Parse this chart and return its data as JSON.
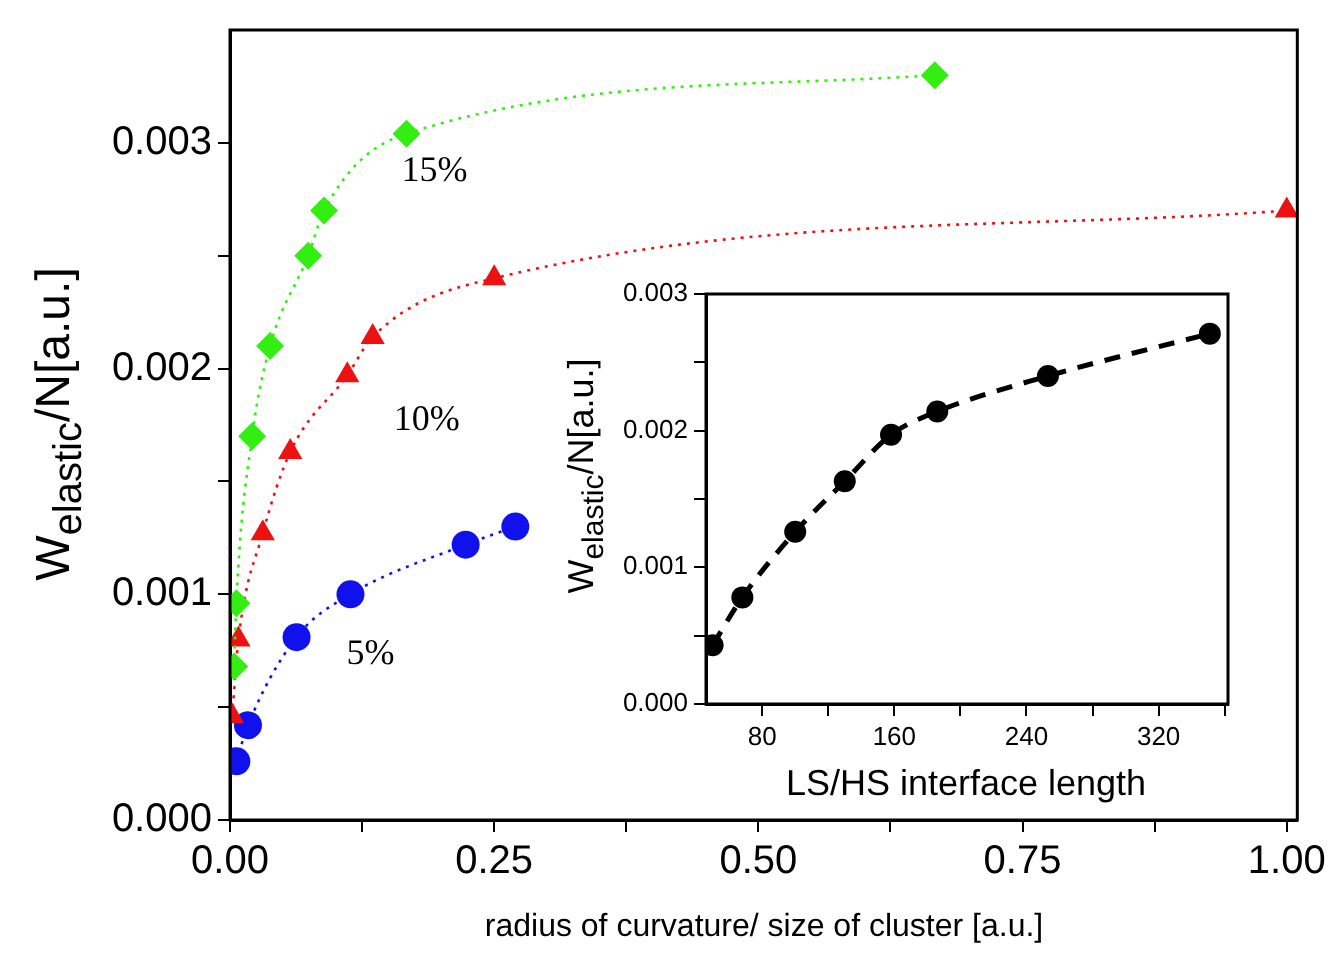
{
  "chart_data": [
    {
      "type": "line",
      "xlabel": "radius of curvature/ size of cluster [a.u.]",
      "ylabel": "W$_{elastic}$/N[a.u.]",
      "xlim": [
        0,
        1.01
      ],
      "ylim": [
        0,
        0.0035
      ],
      "xticks": [
        {
          "value": 0,
          "label": "0.00"
        },
        {
          "value": 0.125,
          "label": null
        },
        {
          "value": 0.25,
          "label": "0.25"
        },
        {
          "value": 0.375,
          "label": null
        },
        {
          "value": 0.5,
          "label": "0.50"
        },
        {
          "value": 0.625,
          "label": null
        },
        {
          "value": 0.75,
          "label": "0.75"
        },
        {
          "value": 0.875,
          "label": null
        },
        {
          "value": 1,
          "label": "1.00"
        }
      ],
      "yticks": [
        {
          "value": 0,
          "label": "0.000"
        },
        {
          "value": 0.0005,
          "label": null
        },
        {
          "value": 0.001,
          "label": "0.001"
        },
        {
          "value": 0.0015,
          "label": null
        },
        {
          "value": 0.002,
          "label": "0.002"
        },
        {
          "value": 0.0025,
          "label": null
        },
        {
          "value": 0.003,
          "label": "0.003"
        }
      ],
      "grid": false,
      "legend": false,
      "line_style": "dotted",
      "series": [
        {
          "name": "15%",
          "color": "#33ee11",
          "marker": "diamond",
          "x": [
            0.004,
            0.006,
            0.021,
            0.038,
            0.074,
            0.089,
            0.167,
            0.667
          ],
          "values": [
            0.00068,
            0.00096,
            0.0017,
            0.0021,
            0.0025,
            0.0027,
            0.00304,
            0.0033
          ]
        },
        {
          "name": "10%",
          "color": "#ee1111",
          "marker": "triangle",
          "x": [
            0.002,
            0.008,
            0.031,
            0.057,
            0.111,
            0.135,
            0.25,
            1.0
          ],
          "values": [
            0.00046,
            0.0008,
            0.00127,
            0.00163,
            0.00197,
            0.00214,
            0.0024,
            0.0027
          ]
        },
        {
          "name": "5%",
          "color": "#1111ee",
          "marker": "circle",
          "x": [
            0.006,
            0.017,
            0.063,
            0.114,
            0.223,
            0.27
          ],
          "values": [
            0.00026,
            0.00042,
            0.00081,
            0.001,
            0.00122,
            0.0013
          ]
        }
      ]
    },
    {
      "type": "line",
      "xlabel": "LS/HS interface length",
      "ylabel": "W$_{elastic}$/N[a.u.]",
      "xlim": [
        46,
        362
      ],
      "ylim": [
        0,
        0.003
      ],
      "xticks": [
        80,
        {
          "value": 120,
          "label": null
        },
        160,
        {
          "value": 200,
          "label": null
        },
        240,
        {
          "value": 280,
          "label": null
        },
        320,
        {
          "value": 360,
          "label": null
        }
      ],
      "yticks": [
        {
          "value": 0,
          "label": "0.000"
        },
        {
          "value": 0.0005,
          "label": null
        },
        {
          "value": 0.001,
          "label": "0.001"
        },
        {
          "value": 0.0015,
          "label": null
        },
        {
          "value": 0.002,
          "label": "0.002"
        },
        {
          "value": 0.0025,
          "label": null
        },
        {
          "value": 0.003,
          "label": "0.003"
        }
      ],
      "grid": false,
      "legend": false,
      "line_style": "dashed",
      "series": [
        {
          "color": "#000000",
          "marker": "circle",
          "x": [
            50,
            68,
            100,
            130,
            158,
            186,
            253,
            351
          ],
          "values": [
            0.00043,
            0.00078,
            0.00126,
            0.00163,
            0.00197,
            0.00214,
            0.0024,
            0.00271
          ]
        }
      ]
    }
  ]
}
